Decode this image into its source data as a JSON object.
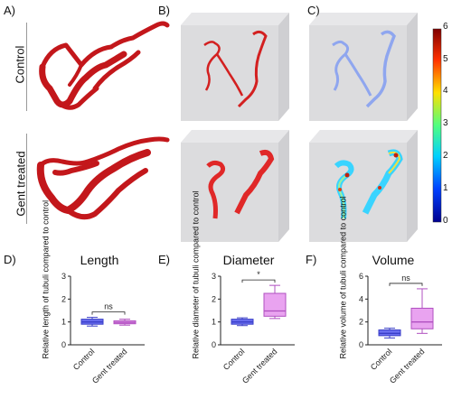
{
  "panels": {
    "A": "A)",
    "B": "B)",
    "C": "C)",
    "D": "D)",
    "E": "E)",
    "F": "F)"
  },
  "rows": {
    "control": "Control",
    "treated": "Gent treated"
  },
  "colorbar": {
    "ticks": [
      "0",
      "1",
      "2",
      "3",
      "4",
      "5",
      "6"
    ]
  },
  "colors": {
    "red": "#c3171b",
    "blue_box": "#6a6ef0",
    "pink_box": "#e9a3f0"
  },
  "chart_data": [
    {
      "type": "box",
      "title": "Length",
      "ylabel": "Relative length of tubuli compared to control",
      "categories": [
        "Control",
        "Gent treated"
      ],
      "ylim": [
        0,
        3
      ],
      "yticks": [
        "0",
        "1",
        "2",
        "3"
      ],
      "significance": "ns",
      "boxes": [
        {
          "name": "Control",
          "min": 0.82,
          "q1": 0.9,
          "median": 1.0,
          "q3": 1.12,
          "max": 1.2
        },
        {
          "name": "Gent treated",
          "min": 0.86,
          "q1": 0.92,
          "median": 0.98,
          "q3": 1.05,
          "max": 1.12
        }
      ]
    },
    {
      "type": "box",
      "title": "Diameter",
      "ylabel": "Relative diameter of tubuli compared to control",
      "categories": [
        "Control",
        "Gent treated"
      ],
      "ylim": [
        0,
        3
      ],
      "yticks": [
        "0",
        "1",
        "2",
        "3"
      ],
      "significance": "*",
      "boxes": [
        {
          "name": "Control",
          "min": 0.84,
          "q1": 0.9,
          "median": 1.0,
          "q3": 1.12,
          "max": 1.18
        },
        {
          "name": "Gent treated",
          "min": 1.15,
          "q1": 1.25,
          "median": 1.48,
          "q3": 2.25,
          "max": 2.6
        }
      ]
    },
    {
      "type": "box",
      "title": "Volume",
      "ylabel": "Relative volume of tubuli compared to control",
      "categories": [
        "Control",
        "Gent treated"
      ],
      "ylim": [
        0,
        6
      ],
      "yticks": [
        "0",
        "2",
        "4",
        "6"
      ],
      "significance": "ns",
      "boxes": [
        {
          "name": "Control",
          "min": 0.6,
          "q1": 0.8,
          "median": 1.0,
          "q3": 1.3,
          "max": 1.45
        },
        {
          "name": "Gent treated",
          "min": 1.0,
          "q1": 1.4,
          "median": 2.0,
          "q3": 3.2,
          "max": 4.9
        }
      ]
    }
  ]
}
